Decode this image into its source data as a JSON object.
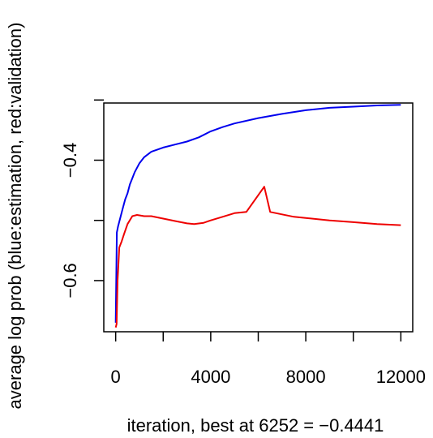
{
  "chart_data": {
    "type": "line",
    "xlabel": "iteration, best at  6252 = −0.4441",
    "ylabel": "average log prob (blue:estimation, red:validation)",
    "xlim": [
      -500,
      12500
    ],
    "ylim": [
      -0.685,
      -0.305
    ],
    "x_ticks": [
      0,
      4000,
      8000,
      12000
    ],
    "x_tick_labels": [
      "0",
      "4000",
      "8000",
      "12000"
    ],
    "y_ticks": [
      -0.4,
      -0.6
    ],
    "y_tick_labels": [
      "−0.4",
      "−0.6"
    ],
    "y_minor_ticks": [
      -0.3,
      -0.5
    ],
    "x_minor_ticks": [
      2000,
      6000,
      10000
    ],
    "grid": false,
    "legend": "none",
    "series": [
      {
        "color": "#0000ee",
        "points": [
          [
            0,
            -0.67
          ],
          [
            50,
            -0.52
          ],
          [
            100,
            -0.51
          ],
          [
            200,
            -0.495
          ],
          [
            300,
            -0.48
          ],
          [
            400,
            -0.465
          ],
          [
            500,
            -0.455
          ],
          [
            600,
            -0.44
          ],
          [
            700,
            -0.43
          ],
          [
            800,
            -0.42
          ],
          [
            1000,
            -0.405
          ],
          [
            1200,
            -0.395
          ],
          [
            1500,
            -0.386
          ],
          [
            2000,
            -0.379
          ],
          [
            2500,
            -0.374
          ],
          [
            3000,
            -0.369
          ],
          [
            3500,
            -0.362
          ],
          [
            4000,
            -0.352
          ],
          [
            4500,
            -0.345
          ],
          [
            5000,
            -0.339
          ],
          [
            6000,
            -0.33
          ],
          [
            7000,
            -0.323
          ],
          [
            8000,
            -0.317
          ],
          [
            9000,
            -0.313
          ],
          [
            10000,
            -0.311
          ],
          [
            11000,
            -0.309
          ],
          [
            12000,
            -0.308
          ]
        ]
      },
      {
        "color": "#ee0000",
        "points": [
          [
            0,
            -0.678
          ],
          [
            40,
            -0.672
          ],
          [
            80,
            -0.6
          ],
          [
            150,
            -0.545
          ],
          [
            250,
            -0.535
          ],
          [
            350,
            -0.523
          ],
          [
            500,
            -0.506
          ],
          [
            700,
            -0.493
          ],
          [
            900,
            -0.491
          ],
          [
            1200,
            -0.493
          ],
          [
            1500,
            -0.493
          ],
          [
            2000,
            -0.497
          ],
          [
            2500,
            -0.501
          ],
          [
            3000,
            -0.505
          ],
          [
            3300,
            -0.506
          ],
          [
            3700,
            -0.504
          ],
          [
            4000,
            -0.5
          ],
          [
            4500,
            -0.494
          ],
          [
            5000,
            -0.488
          ],
          [
            5500,
            -0.486
          ],
          [
            6252,
            -0.4441
          ],
          [
            6500,
            -0.486
          ],
          [
            7000,
            -0.49
          ],
          [
            7500,
            -0.494
          ],
          [
            8000,
            -0.496
          ],
          [
            9000,
            -0.5
          ],
          [
            10000,
            -0.503
          ],
          [
            11000,
            -0.506
          ],
          [
            12000,
            -0.508
          ]
        ]
      }
    ]
  }
}
